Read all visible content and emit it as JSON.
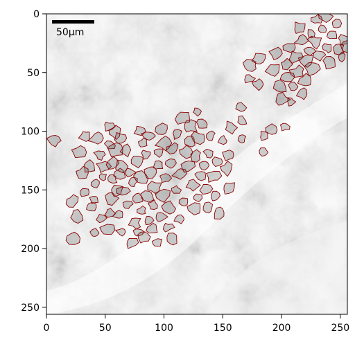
{
  "figure": {
    "type": "microscopy-image-with-cell-contours",
    "colors": {
      "contour": "#8b0000",
      "background": "#ffffff",
      "axis": "#000000",
      "scale_bar": "#000000"
    }
  },
  "scale_bar": {
    "label": "50µm"
  },
  "axes": {
    "x_ticks": [
      "0",
      "50",
      "100",
      "150",
      "200",
      "250"
    ],
    "y_ticks": [
      "0",
      "50",
      "100",
      "150",
      "200",
      "250"
    ],
    "xlim": [
      0,
      256
    ],
    "ylim": [
      256,
      0
    ]
  },
  "contours": [
    {
      "x": 7,
      "y": 108
    },
    {
      "x": 22,
      "y": 160
    },
    {
      "x": 23,
      "y": 191
    },
    {
      "x": 26,
      "y": 172
    },
    {
      "x": 28,
      "y": 118
    },
    {
      "x": 30,
      "y": 136
    },
    {
      "x": 33,
      "y": 104
    },
    {
      "x": 32,
      "y": 152
    },
    {
      "x": 36,
      "y": 130
    },
    {
      "x": 38,
      "y": 165
    },
    {
      "x": 41,
      "y": 158
    },
    {
      "x": 42,
      "y": 145
    },
    {
      "x": 41,
      "y": 187
    },
    {
      "x": 43,
      "y": 106
    },
    {
      "x": 46,
      "y": 120
    },
    {
      "x": 48,
      "y": 139
    },
    {
      "x": 47,
      "y": 174
    },
    {
      "x": 49,
      "y": 130
    },
    {
      "x": 51,
      "y": 184
    },
    {
      "x": 53,
      "y": 96
    },
    {
      "x": 54,
      "y": 112
    },
    {
      "x": 55,
      "y": 157
    },
    {
      "x": 56,
      "y": 127
    },
    {
      "x": 56,
      "y": 141
    },
    {
      "x": 54,
      "y": 170
    },
    {
      "x": 58,
      "y": 101
    },
    {
      "x": 59,
      "y": 116
    },
    {
      "x": 60,
      "y": 151
    },
    {
      "x": 61,
      "y": 171
    },
    {
      "x": 62,
      "y": 136
    },
    {
      "x": 63,
      "y": 106
    },
    {
      "x": 64,
      "y": 130
    },
    {
      "x": 66,
      "y": 151
    },
    {
      "x": 64,
      "y": 186
    },
    {
      "x": 68,
      "y": 116
    },
    {
      "x": 69,
      "y": 162
    },
    {
      "x": 71,
      "y": 135
    },
    {
      "x": 73,
      "y": 195
    },
    {
      "x": 74,
      "y": 143
    },
    {
      "x": 75,
      "y": 178
    },
    {
      "x": 77,
      "y": 126
    },
    {
      "x": 78,
      "y": 157
    },
    {
      "x": 78,
      "y": 186
    },
    {
      "x": 80,
      "y": 100
    },
    {
      "x": 80,
      "y": 140
    },
    {
      "x": 81,
      "y": 168
    },
    {
      "x": 82,
      "y": 110
    },
    {
      "x": 83,
      "y": 190
    },
    {
      "x": 85,
      "y": 120
    },
    {
      "x": 86,
      "y": 155
    },
    {
      "x": 87,
      "y": 104
    },
    {
      "x": 87,
      "y": 176
    },
    {
      "x": 89,
      "y": 135
    },
    {
      "x": 90,
      "y": 183
    },
    {
      "x": 91,
      "y": 163
    },
    {
      "x": 92,
      "y": 148
    },
    {
      "x": 94,
      "y": 195
    },
    {
      "x": 95,
      "y": 118
    },
    {
      "x": 95,
      "y": 129
    },
    {
      "x": 96,
      "y": 173
    },
    {
      "x": 98,
      "y": 98
    },
    {
      "x": 99,
      "y": 155
    },
    {
      "x": 100,
      "y": 110
    },
    {
      "x": 101,
      "y": 140
    },
    {
      "x": 103,
      "y": 182
    },
    {
      "x": 104,
      "y": 166
    },
    {
      "x": 105,
      "y": 127
    },
    {
      "x": 107,
      "y": 192
    },
    {
      "x": 108,
      "y": 115
    },
    {
      "x": 110,
      "y": 150
    },
    {
      "x": 111,
      "y": 103
    },
    {
      "x": 113,
      "y": 136
    },
    {
      "x": 114,
      "y": 175
    },
    {
      "x": 116,
      "y": 88
    },
    {
      "x": 117,
      "y": 160
    },
    {
      "x": 118,
      "y": 118
    },
    {
      "x": 120,
      "y": 130
    },
    {
      "x": 122,
      "y": 96
    },
    {
      "x": 123,
      "y": 109
    },
    {
      "x": 124,
      "y": 146
    },
    {
      "x": 125,
      "y": 166
    },
    {
      "x": 127,
      "y": 121
    },
    {
      "x": 128,
      "y": 83
    },
    {
      "x": 129,
      "y": 157
    },
    {
      "x": 130,
      "y": 106
    },
    {
      "x": 131,
      "y": 138
    },
    {
      "x": 132,
      "y": 94
    },
    {
      "x": 134,
      "y": 129
    },
    {
      "x": 136,
      "y": 149
    },
    {
      "x": 137,
      "y": 166
    },
    {
      "x": 139,
      "y": 119
    },
    {
      "x": 140,
      "y": 104
    },
    {
      "x": 142,
      "y": 138
    },
    {
      "x": 144,
      "y": 155
    },
    {
      "x": 146,
      "y": 126
    },
    {
      "x": 147,
      "y": 169
    },
    {
      "x": 150,
      "y": 108
    },
    {
      "x": 153,
      "y": 132
    },
    {
      "x": 155,
      "y": 120
    },
    {
      "x": 155,
      "y": 148
    },
    {
      "x": 157,
      "y": 97
    },
    {
      "x": 165,
      "y": 80
    },
    {
      "x": 166,
      "y": 91
    },
    {
      "x": 166,
      "y": 107
    },
    {
      "x": 172,
      "y": 55
    },
    {
      "x": 174,
      "y": 44
    },
    {
      "x": 180,
      "y": 60
    },
    {
      "x": 181,
      "y": 38
    },
    {
      "x": 185,
      "y": 104
    },
    {
      "x": 185,
      "y": 118
    },
    {
      "x": 191,
      "y": 99
    },
    {
      "x": 193,
      "y": 47
    },
    {
      "x": 196,
      "y": 34
    },
    {
      "x": 198,
      "y": 62
    },
    {
      "x": 200,
      "y": 73
    },
    {
      "x": 203,
      "y": 96
    },
    {
      "x": 204,
      "y": 43
    },
    {
      "x": 205,
      "y": 54
    },
    {
      "x": 207,
      "y": 29
    },
    {
      "x": 208,
      "y": 75
    },
    {
      "x": 210,
      "y": 62
    },
    {
      "x": 212,
      "y": 37
    },
    {
      "x": 214,
      "y": 50
    },
    {
      "x": 215,
      "y": 12
    },
    {
      "x": 217,
      "y": 23
    },
    {
      "x": 218,
      "y": 68
    },
    {
      "x": 220,
      "y": 57
    },
    {
      "x": 221,
      "y": 40
    },
    {
      "x": 224,
      "y": 32
    },
    {
      "x": 225,
      "y": 17
    },
    {
      "x": 227,
      "y": 47
    },
    {
      "x": 229,
      "y": 24
    },
    {
      "x": 230,
      "y": 5
    },
    {
      "x": 232,
      "y": 35
    },
    {
      "x": 235,
      "y": 13
    },
    {
      "x": 237,
      "y": 2
    },
    {
      "x": 239,
      "y": 29
    },
    {
      "x": 241,
      "y": 42
    },
    {
      "x": 243,
      "y": 18
    },
    {
      "x": 246,
      "y": 8
    },
    {
      "x": 248,
      "y": 30
    },
    {
      "x": 251,
      "y": 37
    },
    {
      "x": 253,
      "y": 22
    },
    {
      "x": 255,
      "y": 28
    }
  ]
}
